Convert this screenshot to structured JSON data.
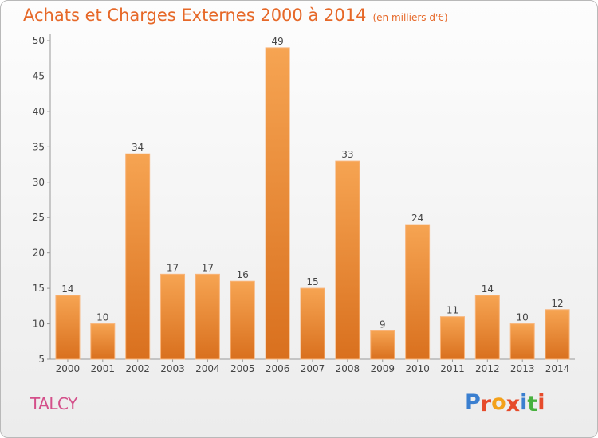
{
  "title": "Achats et Charges Externes 2000 à 2014",
  "subtitle": "(en milliers d'€)",
  "commune": "TALCY",
  "logo": "Proxiti",
  "colors": {
    "title": "#e66828",
    "commune": "#d44f8a",
    "bar_top": "#f6a452",
    "bar_bottom": "#d9701e",
    "logo_letters": [
      "#3a7fd0",
      "#e64b2b",
      "#f3a11a",
      "#e64b2b",
      "#3a7fd0",
      "#48b13e",
      "#e64b2b"
    ]
  },
  "chart_data": {
    "type": "bar",
    "categories": [
      "2000",
      "2001",
      "2002",
      "2003",
      "2004",
      "2005",
      "2006",
      "2007",
      "2008",
      "2009",
      "2010",
      "2011",
      "2012",
      "2013",
      "2014"
    ],
    "values": [
      14,
      10,
      34,
      17,
      17,
      16,
      49,
      15,
      33,
      9,
      24,
      11,
      14,
      10,
      12
    ],
    "ylim": [
      5,
      50
    ],
    "yticks": [
      5,
      10,
      15,
      20,
      25,
      30,
      35,
      40,
      45,
      50
    ],
    "grid": false,
    "legend": "none"
  }
}
